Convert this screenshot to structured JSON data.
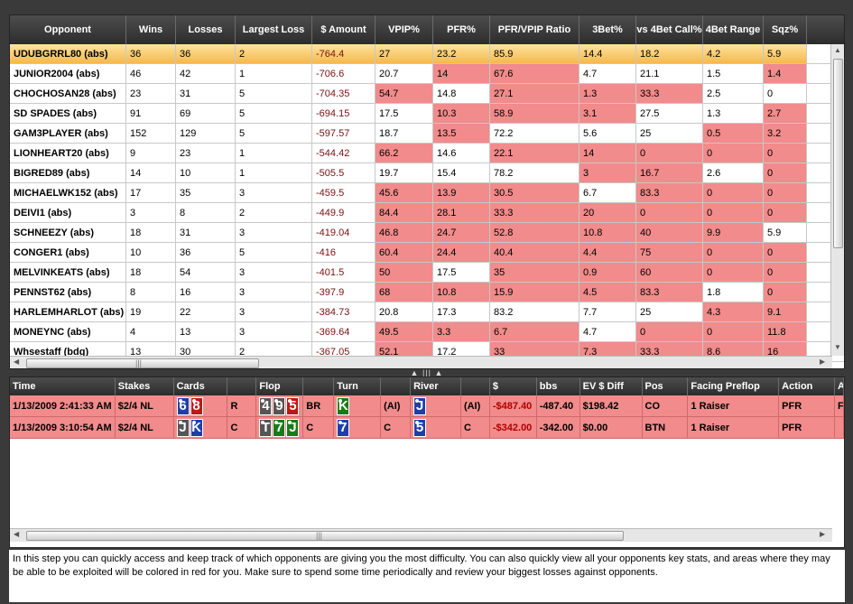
{
  "top_table": {
    "columns": [
      "Opponent",
      "Wins",
      "Losses",
      "Largest Loss",
      "$ Amount",
      "VPIP%",
      "PFR%",
      "PFR/VPIP Ratio",
      "3Bet%",
      "vs 4Bet Call%",
      "4Bet Range",
      "Sqz%"
    ],
    "rows": [
      {
        "cells": [
          "UDUBGRRL80 (abs)",
          "36",
          "36",
          "2",
          "-764.4",
          "27",
          "23.2",
          "85.9",
          "14.4",
          "18.2",
          "4.2",
          "5.9"
        ],
        "red": [],
        "selected": true
      },
      {
        "cells": [
          "JUNIOR2004 (abs)",
          "46",
          "42",
          "1",
          "-706.6",
          "20.7",
          "14",
          "67.6",
          "4.7",
          "21.1",
          "1.5",
          "1.4"
        ],
        "red": [
          6,
          7,
          11
        ]
      },
      {
        "cells": [
          "CHOCHOSAN28 (abs)",
          "23",
          "31",
          "5",
          "-704.35",
          "54.7",
          "14.8",
          "27.1",
          "1.3",
          "33.3",
          "2.5",
          "0"
        ],
        "red": [
          5,
          7,
          8,
          9
        ]
      },
      {
        "cells": [
          "SD SPADES (abs)",
          "91",
          "69",
          "5",
          "-694.15",
          "17.5",
          "10.3",
          "58.9",
          "3.1",
          "27.5",
          "1.3",
          "2.7"
        ],
        "red": [
          6,
          7,
          8,
          11
        ]
      },
      {
        "cells": [
          "GAM3PLAYER (abs)",
          "152",
          "129",
          "5",
          "-597.57",
          "18.7",
          "13.5",
          "72.2",
          "5.6",
          "25",
          "0.5",
          "3.2"
        ],
        "red": [
          6,
          10,
          11
        ]
      },
      {
        "cells": [
          "LIONHEART20 (abs)",
          "9",
          "23",
          "1",
          "-544.42",
          "66.2",
          "14.6",
          "22.1",
          "14",
          "0",
          "0",
          "0"
        ],
        "red": [
          5,
          7,
          8,
          9,
          10,
          11
        ]
      },
      {
        "cells": [
          "BIGRED89 (abs)",
          "14",
          "10",
          "1",
          "-505.5",
          "19.7",
          "15.4",
          "78.2",
          "3",
          "16.7",
          "2.6",
          "0"
        ],
        "red": [
          8,
          9,
          11
        ]
      },
      {
        "cells": [
          "MICHAELWK152 (abs)",
          "17",
          "35",
          "3",
          "-459.5",
          "45.6",
          "13.9",
          "30.5",
          "6.7",
          "83.3",
          "0",
          "0"
        ],
        "red": [
          5,
          6,
          7,
          9,
          10,
          11
        ]
      },
      {
        "cells": [
          "DEIVI1 (abs)",
          "3",
          "8",
          "2",
          "-449.9",
          "84.4",
          "28.1",
          "33.3",
          "20",
          "0",
          "0",
          "0"
        ],
        "red": [
          5,
          6,
          7,
          8,
          9,
          10,
          11
        ]
      },
      {
        "cells": [
          "SCHNEEZY (abs)",
          "18",
          "31",
          "3",
          "-419.04",
          "46.8",
          "24.7",
          "52.8",
          "10.8",
          "40",
          "9.9",
          "5.9"
        ],
        "red": [
          5,
          6,
          7,
          8,
          9,
          10
        ]
      },
      {
        "cells": [
          "CONGER1 (abs)",
          "10",
          "36",
          "5",
          "-416",
          "60.4",
          "24.4",
          "40.4",
          "4.4",
          "75",
          "0",
          "0"
        ],
        "red": [
          5,
          6,
          7,
          8,
          9,
          10,
          11
        ]
      },
      {
        "cells": [
          "MELVINKEATS (abs)",
          "18",
          "54",
          "3",
          "-401.5",
          "50",
          "17.5",
          "35",
          "0.9",
          "60",
          "0",
          "0"
        ],
        "red": [
          5,
          7,
          8,
          9,
          10,
          11
        ]
      },
      {
        "cells": [
          "PENNST62 (abs)",
          "8",
          "16",
          "3",
          "-397.9",
          "68",
          "10.8",
          "15.9",
          "4.5",
          "83.3",
          "1.8",
          "0"
        ],
        "red": [
          5,
          6,
          7,
          8,
          9,
          11
        ]
      },
      {
        "cells": [
          "HARLEMHARLOT (abs)",
          "19",
          "22",
          "3",
          "-384.73",
          "20.8",
          "17.3",
          "83.2",
          "7.7",
          "25",
          "4.3",
          "9.1"
        ],
        "red": [
          10,
          11
        ]
      },
      {
        "cells": [
          "MONEYNC (abs)",
          "4",
          "13",
          "3",
          "-369.64",
          "49.5",
          "3.3",
          "6.7",
          "4.7",
          "0",
          "0",
          "11.8"
        ],
        "red": [
          5,
          6,
          7,
          9,
          10,
          11
        ]
      },
      {
        "cells": [
          "Whsestaff (bdg)",
          "13",
          "30",
          "2",
          "-367.05",
          "52.1",
          "17.2",
          "33",
          "7.3",
          "33.3",
          "8.6",
          "16"
        ],
        "red": [
          5,
          7,
          8,
          9,
          10,
          11
        ]
      }
    ]
  },
  "bottom_table": {
    "columns": [
      "Time",
      "Stakes",
      "Cards",
      "",
      "Flop",
      "",
      "Turn",
      "",
      "River",
      "",
      "$",
      "bbs",
      "EV $ Diff",
      "Pos",
      "Facing Preflop",
      "Action",
      "A"
    ],
    "rows": [
      {
        "time": "1/13/2009 2:41:33 AM",
        "stakes": "$2/4 NL",
        "cards": [
          {
            "r": "6",
            "c": "blue"
          },
          {
            "r": "8",
            "c": "red"
          }
        ],
        "pre": "R",
        "flop": [
          {
            "r": "4",
            "c": "gray"
          },
          {
            "r": "9",
            "c": "gray"
          },
          {
            "r": "5",
            "c": "red"
          }
        ],
        "flop_act": "BR",
        "turn": [
          {
            "r": "K",
            "c": "green"
          }
        ],
        "turn_act": "(AI)",
        "river": [
          {
            "r": "J",
            "c": "blue"
          }
        ],
        "river_act": "(AI)",
        "amount": "-$487.40",
        "bbs": "-487.40",
        "ev": "$198.42",
        "pos": "CO",
        "facing": "1 Raiser",
        "action": "PFR",
        "extra": "F"
      },
      {
        "time": "1/13/2009 3:10:54 AM",
        "stakes": "$2/4 NL",
        "cards": [
          {
            "r": "J",
            "c": "gray"
          },
          {
            "r": "K",
            "c": "blue"
          }
        ],
        "pre": "C",
        "flop": [
          {
            "r": "T",
            "c": "gray"
          },
          {
            "r": "7",
            "c": "green"
          },
          {
            "r": "J",
            "c": "green"
          }
        ],
        "flop_act": "C",
        "turn": [
          {
            "r": "7",
            "c": "blue"
          }
        ],
        "turn_act": "C",
        "river": [
          {
            "r": "5",
            "c": "blue"
          }
        ],
        "river_act": "C",
        "amount": "-$342.00",
        "bbs": "-342.00",
        "ev": "$0.00",
        "pos": "BTN",
        "facing": "1 Raiser",
        "action": "PFR",
        "extra": ""
      }
    ]
  },
  "info_text": "In this step you can quickly access and keep track of which opponents are giving you the most difficulty. You can also quickly view all your opponents key stats, and areas where they may be able to be exploited will be colored in red for you. Make sure to spend some time periodically and review your biggest losses against opponents.",
  "icons": {
    "up_arrow": "▲",
    "down_arrow": "▼",
    "left_arrow": "◀",
    "right_arrow": "▶",
    "grip": "|||"
  },
  "colors": {
    "exploit_red": "#f28b8b",
    "selected_row": "#f7b84a",
    "header_dark": "#333333"
  }
}
